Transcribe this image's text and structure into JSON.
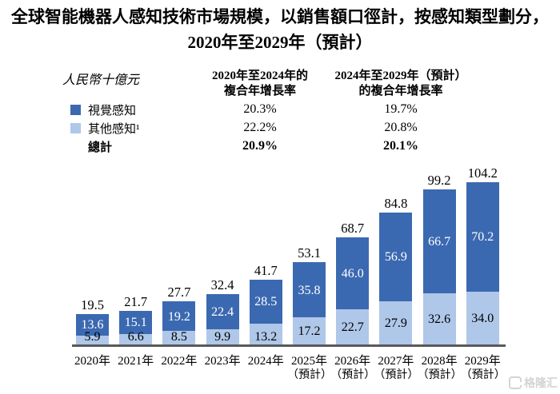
{
  "title": {
    "line1": "全球智能機器人感知技術市場規模，以銷售額口徑計，按感知類型劃分，",
    "line2": "2020年至2029年（預計）"
  },
  "unit_label": "人民幣十億元",
  "legend": {
    "items": [
      {
        "label": "視覺感知",
        "color": "#3B69B1"
      },
      {
        "label": "其他感知¹",
        "color": "#AFC7E8"
      },
      {
        "label": "總計",
        "color": null
      }
    ]
  },
  "cagr": {
    "columns": [
      {
        "header_line1": "2020年至2024年的",
        "header_line2": "複合年增長率",
        "visual": "20.3%",
        "other": "22.2%",
        "total": "20.9%"
      },
      {
        "header_line1": "2024年至2029年（預計）",
        "header_line2": "的複合年增長率",
        "visual": "19.7%",
        "other": "20.8%",
        "total": "20.1%"
      }
    ]
  },
  "chart_data": {
    "type": "bar",
    "stacked": true,
    "unit": "人民幣十億元",
    "categories": [
      "2020年",
      "2021年",
      "2022年",
      "2023年",
      "2024年",
      "2025年",
      "2026年",
      "2027年",
      "2028年",
      "2029年"
    ],
    "category_notes": [
      "",
      "",
      "",
      "",
      "",
      "（預計）",
      "（預計）",
      "（預計）",
      "（預計）",
      "（預計）"
    ],
    "series": [
      {
        "name": "視覺感知",
        "color": "#3B69B1",
        "values": [
          13.6,
          15.1,
          19.2,
          22.4,
          28.5,
          35.8,
          46.0,
          56.9,
          66.7,
          70.2
        ]
      },
      {
        "name": "其他感知",
        "color": "#AFC7E8",
        "values": [
          5.9,
          6.6,
          8.5,
          9.9,
          13.2,
          17.2,
          22.7,
          27.9,
          32.6,
          34.0
        ]
      }
    ],
    "totals": [
      19.5,
      21.7,
      27.7,
      32.4,
      41.7,
      53.1,
      68.7,
      84.8,
      99.2,
      104.2
    ],
    "ylim": [
      0,
      110
    ],
    "axis_color": "#58595B",
    "grid": false,
    "legend_position": "top-left",
    "value_labels": true
  },
  "watermark": {
    "text": "格隆汇"
  }
}
